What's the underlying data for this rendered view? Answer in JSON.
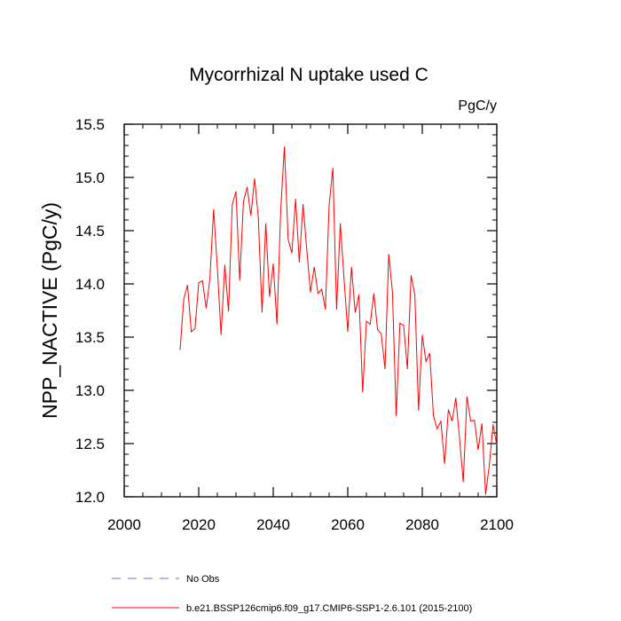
{
  "chart_data": {
    "type": "line",
    "title": "Mycorrhizal N uptake used C",
    "units": "PgC/y",
    "xlabel": "",
    "ylabel": "NPP_NACTIVE  (PgC/y)",
    "xlim": [
      2000,
      2100
    ],
    "ylim": [
      12.0,
      15.5
    ],
    "xticks": [
      2000,
      2020,
      2040,
      2060,
      2080,
      2100
    ],
    "yticks": [
      12.0,
      12.5,
      13.0,
      13.5,
      14.0,
      14.5,
      15.0,
      15.5
    ],
    "xtick_labels": [
      "2000",
      "2020",
      "2040",
      "2060",
      "2080",
      "2100"
    ],
    "ytick_labels": [
      "12.0",
      "12.5",
      "13.0",
      "13.5",
      "14.0",
      "14.5",
      "15.0",
      "15.5"
    ],
    "series": [
      {
        "name": "b.e21.BSSP126cmip6.f09_g17.CMIP6-SSP1-2.6.101 (2015-2100)",
        "color": "#ff0000",
        "style": "solid",
        "x": [
          2015,
          2016,
          2017,
          2018,
          2019,
          2020,
          2021,
          2022,
          2023,
          2024,
          2025,
          2026,
          2027,
          2028,
          2029,
          2030,
          2031,
          2032,
          2033,
          2034,
          2035,
          2036,
          2037,
          2038,
          2039,
          2040,
          2041,
          2042,
          2043,
          2044,
          2045,
          2046,
          2047,
          2048,
          2049,
          2050,
          2051,
          2052,
          2053,
          2054,
          2055,
          2056,
          2057,
          2058,
          2059,
          2060,
          2061,
          2062,
          2063,
          2064,
          2065,
          2066,
          2067,
          2068,
          2069,
          2070,
          2071,
          2072,
          2073,
          2074,
          2075,
          2076,
          2077,
          2078,
          2079,
          2080,
          2081,
          2082,
          2083,
          2084,
          2085,
          2086,
          2087,
          2088,
          2089,
          2090,
          2091,
          2092,
          2093,
          2094,
          2095,
          2096,
          2097,
          2098,
          2099,
          2100
        ],
        "values": [
          13.38,
          13.86,
          13.99,
          13.55,
          13.58,
          14.01,
          14.03,
          13.77,
          14.05,
          14.7,
          14.15,
          13.52,
          14.18,
          13.74,
          14.74,
          14.87,
          14.03,
          14.77,
          14.91,
          14.64,
          14.99,
          14.62,
          13.73,
          14.57,
          13.88,
          14.19,
          13.62,
          14.69,
          15.29,
          14.42,
          14.29,
          14.8,
          14.2,
          14.75,
          14.32,
          13.92,
          14.16,
          13.91,
          13.95,
          13.76,
          14.74,
          15.09,
          13.76,
          14.57,
          14.05,
          13.55,
          14.16,
          13.73,
          13.9,
          12.98,
          13.65,
          13.62,
          13.91,
          13.57,
          13.53,
          13.2,
          14.28,
          13.92,
          12.76,
          13.63,
          13.61,
          13.2,
          14.08,
          13.9,
          12.81,
          13.52,
          13.27,
          13.35,
          12.76,
          12.64,
          12.71,
          12.31,
          12.82,
          12.71,
          12.93,
          12.55,
          12.14,
          12.94,
          12.71,
          12.72,
          12.44,
          12.69,
          12.02,
          12.3,
          12.68,
          12.48
        ]
      }
    ],
    "legend": {
      "position": "bottom-left",
      "entries": [
        {
          "label": "No Obs",
          "color": "#6f6fe8",
          "style": "dashed"
        },
        {
          "label": "b.e21.BSSP126cmip6.f09_g17.CMIP6-SSP1-2.6.101 (2015-2100)",
          "color": "#ff0000",
          "style": "solid"
        }
      ]
    }
  }
}
